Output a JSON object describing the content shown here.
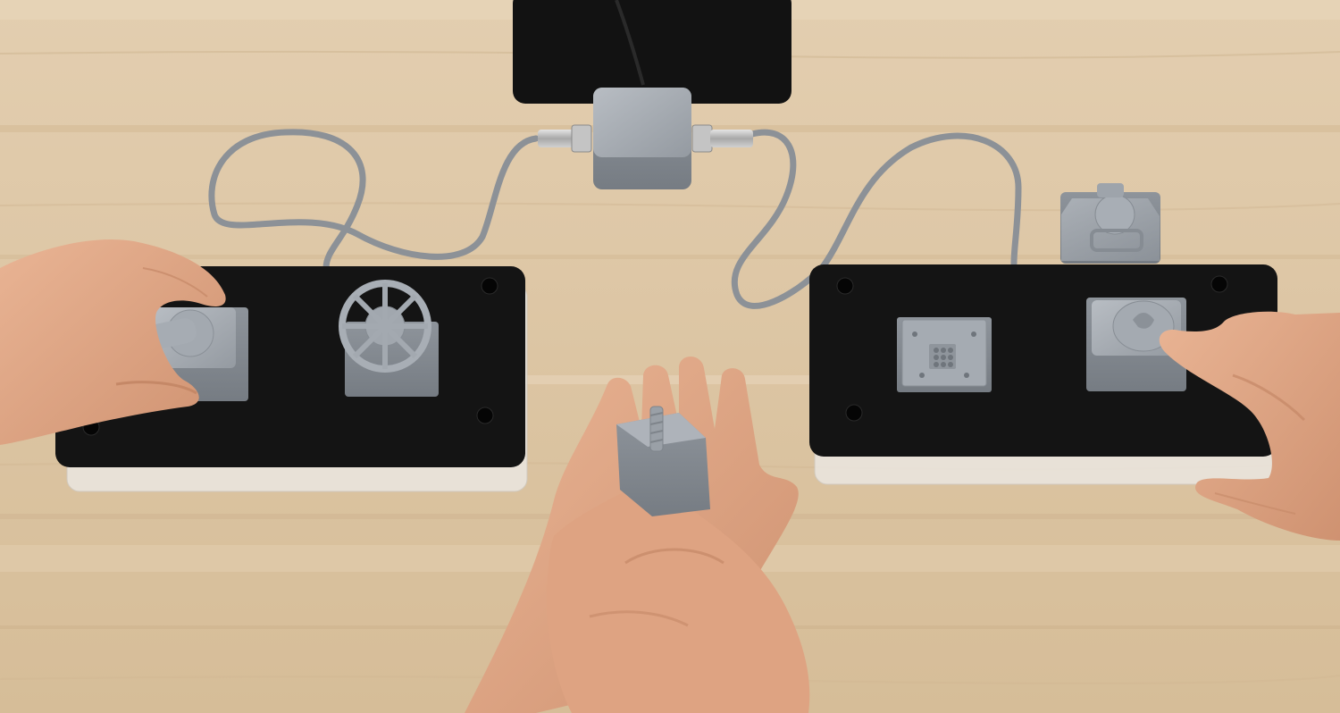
{
  "scene": {
    "colors": {
      "table_wood": "#dcc6a6",
      "table_grain_light": "#e6d4b8",
      "table_grain_dark": "#cdb592",
      "panel_black": "#141414",
      "acrylic_base": "#e9e5df",
      "module_grey": "#9aa0a6",
      "module_grey_light": "#b4b9bf",
      "module_grey_dark": "#7d838a",
      "ribbon_cable": "#8d9298",
      "metal_connector": "#b9b9b9",
      "skin": "#e0a685",
      "skin_shadow": "#c98b69"
    }
  }
}
